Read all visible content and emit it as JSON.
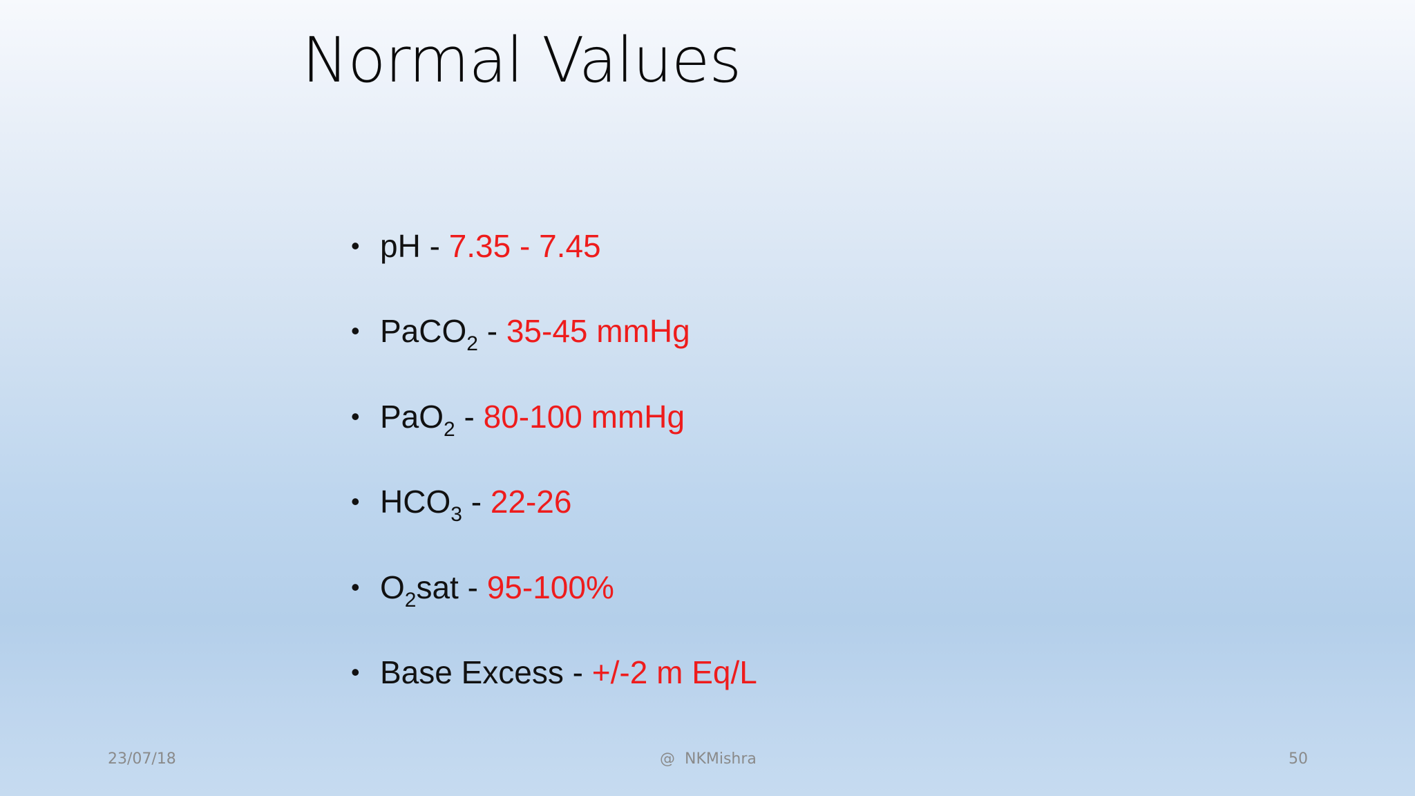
{
  "slide": {
    "title": "Normal Values",
    "colors": {
      "value_text": "#ee1c1c",
      "label_text": "#111111"
    }
  },
  "bullets": [
    {
      "label": "pH - ",
      "value": "7.35 - 7.45"
    },
    {
      "label": "PaCO",
      "sub": "2",
      "label_after": " - ",
      "value": "35-45 mmHg"
    },
    {
      "label": "PaO",
      "sub": "2",
      "label_after": " - ",
      "value": "80-100 mmHg"
    },
    {
      "label": "HCO",
      "sub": "3",
      "label_after": " - ",
      "value": "22-26"
    },
    {
      "label": "O",
      "sub": "2",
      "label_after": "sat - ",
      "value": "95-100%"
    },
    {
      "label": "Base Excess - ",
      "value": "+/-2 m Eq/L"
    }
  ],
  "footer": {
    "date": "23/07/18",
    "author": "@  NKMishra",
    "page_number": "50"
  }
}
